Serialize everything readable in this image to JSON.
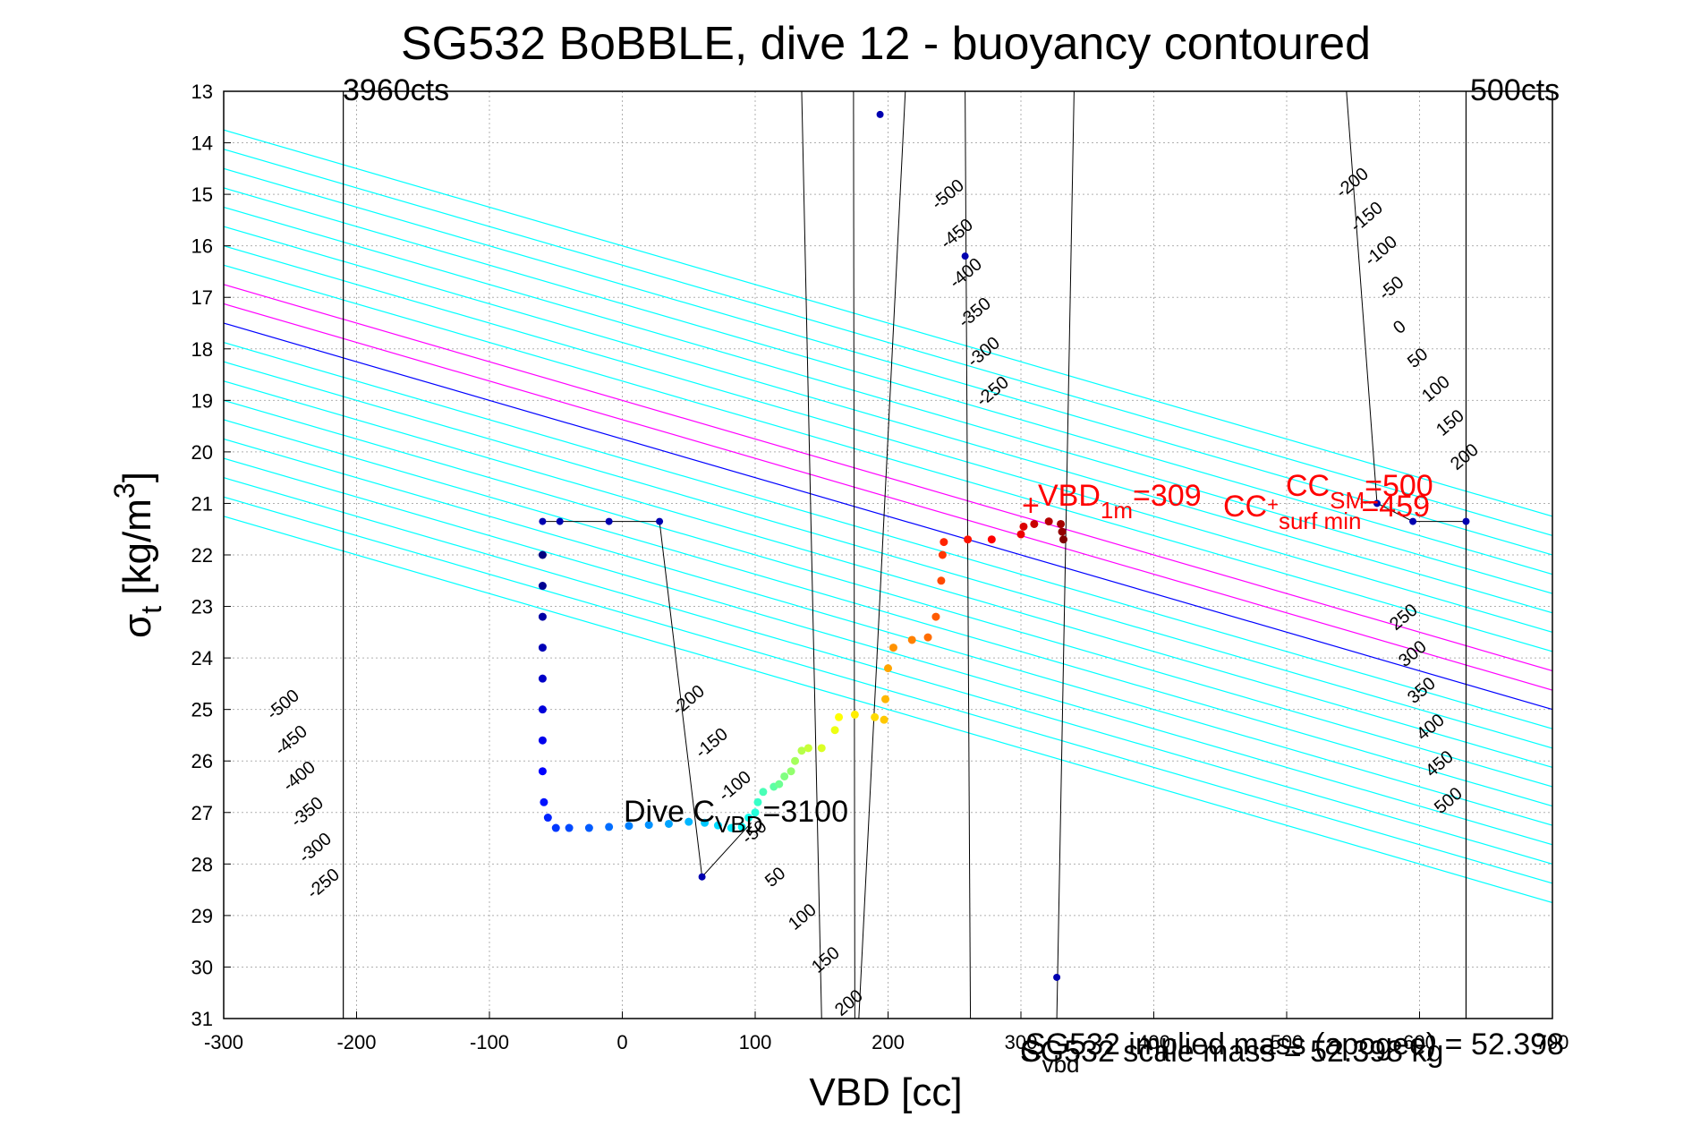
{
  "chart_data": {
    "type": "scatter",
    "title": "SG532 BoBBLE, dive 12 - buoyancy contoured",
    "xlabel": "VBD [cc]",
    "ylabel_main": "σ",
    "ylabel_sub": "t",
    "ylabel_rest": " [kg/m",
    "ylabel_sup": "3",
    "ylabel_end": "]",
    "xlim": [
      -300,
      700
    ],
    "ylim": [
      13,
      31
    ],
    "y_reversed": true,
    "grid": true,
    "xticks": [
      -300,
      -200,
      -100,
      0,
      100,
      200,
      300,
      400,
      500,
      600,
      700
    ],
    "xtick_labels": [
      "-300",
      "-200",
      "-100",
      "0",
      "100",
      "200",
      "300",
      "400",
      "500",
      "600",
      "700"
    ],
    "yticks": [
      13,
      14,
      15,
      16,
      17,
      18,
      19,
      20,
      21,
      22,
      23,
      24,
      25,
      26,
      27,
      28,
      29,
      30,
      31
    ],
    "ytick_labels": [
      "13",
      "14",
      "15",
      "16",
      "17",
      "18",
      "19",
      "20",
      "21",
      "22",
      "23",
      "24",
      "25",
      "26",
      "27",
      "28",
      "29",
      "30",
      "31"
    ],
    "colors": {
      "buoyancy_contours": "#00ffff",
      "zero_line": "#0000ff",
      "magenta_lines": "#ff00ff",
      "vertical_lines": "#000000",
      "annotation_red": "#ff0000"
    },
    "buoyancy_contour_offsets": [
      -500,
      -450,
      -400,
      -350,
      -300,
      -250,
      -200,
      -150,
      -100,
      -50,
      0,
      50,
      100,
      150,
      200,
      250,
      300,
      350,
      400,
      450,
      500
    ],
    "vertical_lines": [
      {
        "x": -210,
        "label": "3960cts"
      },
      {
        "x": 635,
        "label": "500cts"
      }
    ],
    "contour_labels_left": [
      "-500",
      "-450",
      "-400",
      "-350",
      "-300",
      "-250"
    ],
    "contour_labels_mid_top": [
      "-500",
      "-450",
      "-400",
      "-350",
      "-300",
      "-250"
    ],
    "contour_labels_mid_low": [
      "-200",
      "-150",
      "-100",
      "-50",
      "50",
      "100",
      "150",
      "200"
    ],
    "contour_labels_right_top": [
      "-200",
      "-150",
      "-100",
      "-50",
      "0",
      "50",
      "100",
      "150",
      "200"
    ],
    "contour_labels_right_low": [
      "250",
      "300",
      "350",
      "400",
      "450",
      "500"
    ],
    "descent_path": [
      [
        -60,
        21.35
      ],
      [
        -47,
        21.35
      ],
      [
        -10,
        21.35
      ],
      [
        28,
        21.35
      ],
      [
        60,
        28.25
      ],
      [
        97,
        27.2
      ]
    ],
    "blue_dots": [
      [
        -60,
        21.35
      ],
      [
        -47,
        21.35
      ],
      [
        -10,
        21.35
      ],
      [
        28,
        21.35
      ],
      [
        60,
        28.25
      ],
      [
        194,
        13.45
      ],
      [
        258,
        16.2
      ],
      [
        327,
        30.2
      ],
      [
        568,
        21.0
      ],
      [
        595,
        21.35
      ],
      [
        635,
        21.35
      ]
    ],
    "series": [
      {
        "name": "",
        "color_scale": "jet",
        "points": [
          [
            -60,
            22.0
          ],
          [
            -60,
            22.6
          ],
          [
            -60,
            23.2
          ],
          [
            -60,
            23.8
          ],
          [
            -60,
            24.4
          ],
          [
            -60,
            25.0
          ],
          [
            -60,
            25.6
          ],
          [
            -60,
            26.2
          ],
          [
            -59,
            26.8
          ],
          [
            -56,
            27.1
          ],
          [
            -50,
            27.3
          ],
          [
            -40,
            27.3
          ],
          [
            -25,
            27.3
          ],
          [
            -10,
            27.28
          ],
          [
            5,
            27.26
          ],
          [
            20,
            27.24
          ],
          [
            35,
            27.22
          ],
          [
            50,
            27.18
          ],
          [
            62,
            27.2
          ],
          [
            72,
            27.25
          ],
          [
            82,
            27.3
          ],
          [
            90,
            27.28
          ],
          [
            95,
            27.1
          ],
          [
            100,
            27.0
          ],
          [
            102,
            26.8
          ],
          [
            106,
            26.6
          ],
          [
            114,
            26.5
          ],
          [
            118,
            26.45
          ],
          [
            122,
            26.3
          ],
          [
            127,
            26.2
          ],
          [
            130,
            26.0
          ],
          [
            135,
            25.8
          ],
          [
            140,
            25.75
          ],
          [
            150,
            25.75
          ],
          [
            160,
            25.4
          ],
          [
            163,
            25.15
          ],
          [
            175,
            25.1
          ],
          [
            190,
            25.15
          ],
          [
            197,
            25.2
          ],
          [
            198,
            24.8
          ],
          [
            200,
            24.2
          ],
          [
            204,
            23.8
          ],
          [
            218,
            23.65
          ],
          [
            230,
            23.6
          ],
          [
            236,
            23.2
          ],
          [
            240,
            22.5
          ],
          [
            241,
            22.0
          ],
          [
            242,
            21.75
          ],
          [
            260,
            21.7
          ],
          [
            278,
            21.7
          ],
          [
            300,
            21.6
          ],
          [
            302,
            21.45
          ],
          [
            310,
            21.4
          ],
          [
            321,
            21.35
          ],
          [
            330,
            21.4
          ],
          [
            331,
            21.55
          ],
          [
            332,
            21.7
          ]
        ]
      }
    ],
    "annotations": {
      "dive_c_main": "Dive C",
      "dive_c_sub": "VBD",
      "dive_c_val": "=3100",
      "vbd1m_plus": "+",
      "vbd1m_main": "VBD",
      "vbd1m_sub": "1m",
      "vbd1m_val": "=309",
      "ccsm_main": "CC",
      "ccsm_sub": "SM",
      "ccsm_val": "=500",
      "ccsurf_main": "CC",
      "ccsurf_plus": "+",
      "ccsurf_sub": "surf min",
      "ccsurf_val": "=459",
      "cvbd_main": "C",
      "cvbd_sub": "vbd",
      "implied_mass": "SG532 implied mass (apogee) = 52.398",
      "scale_mass": "SG532 scale mass = 52.398 kg"
    }
  }
}
